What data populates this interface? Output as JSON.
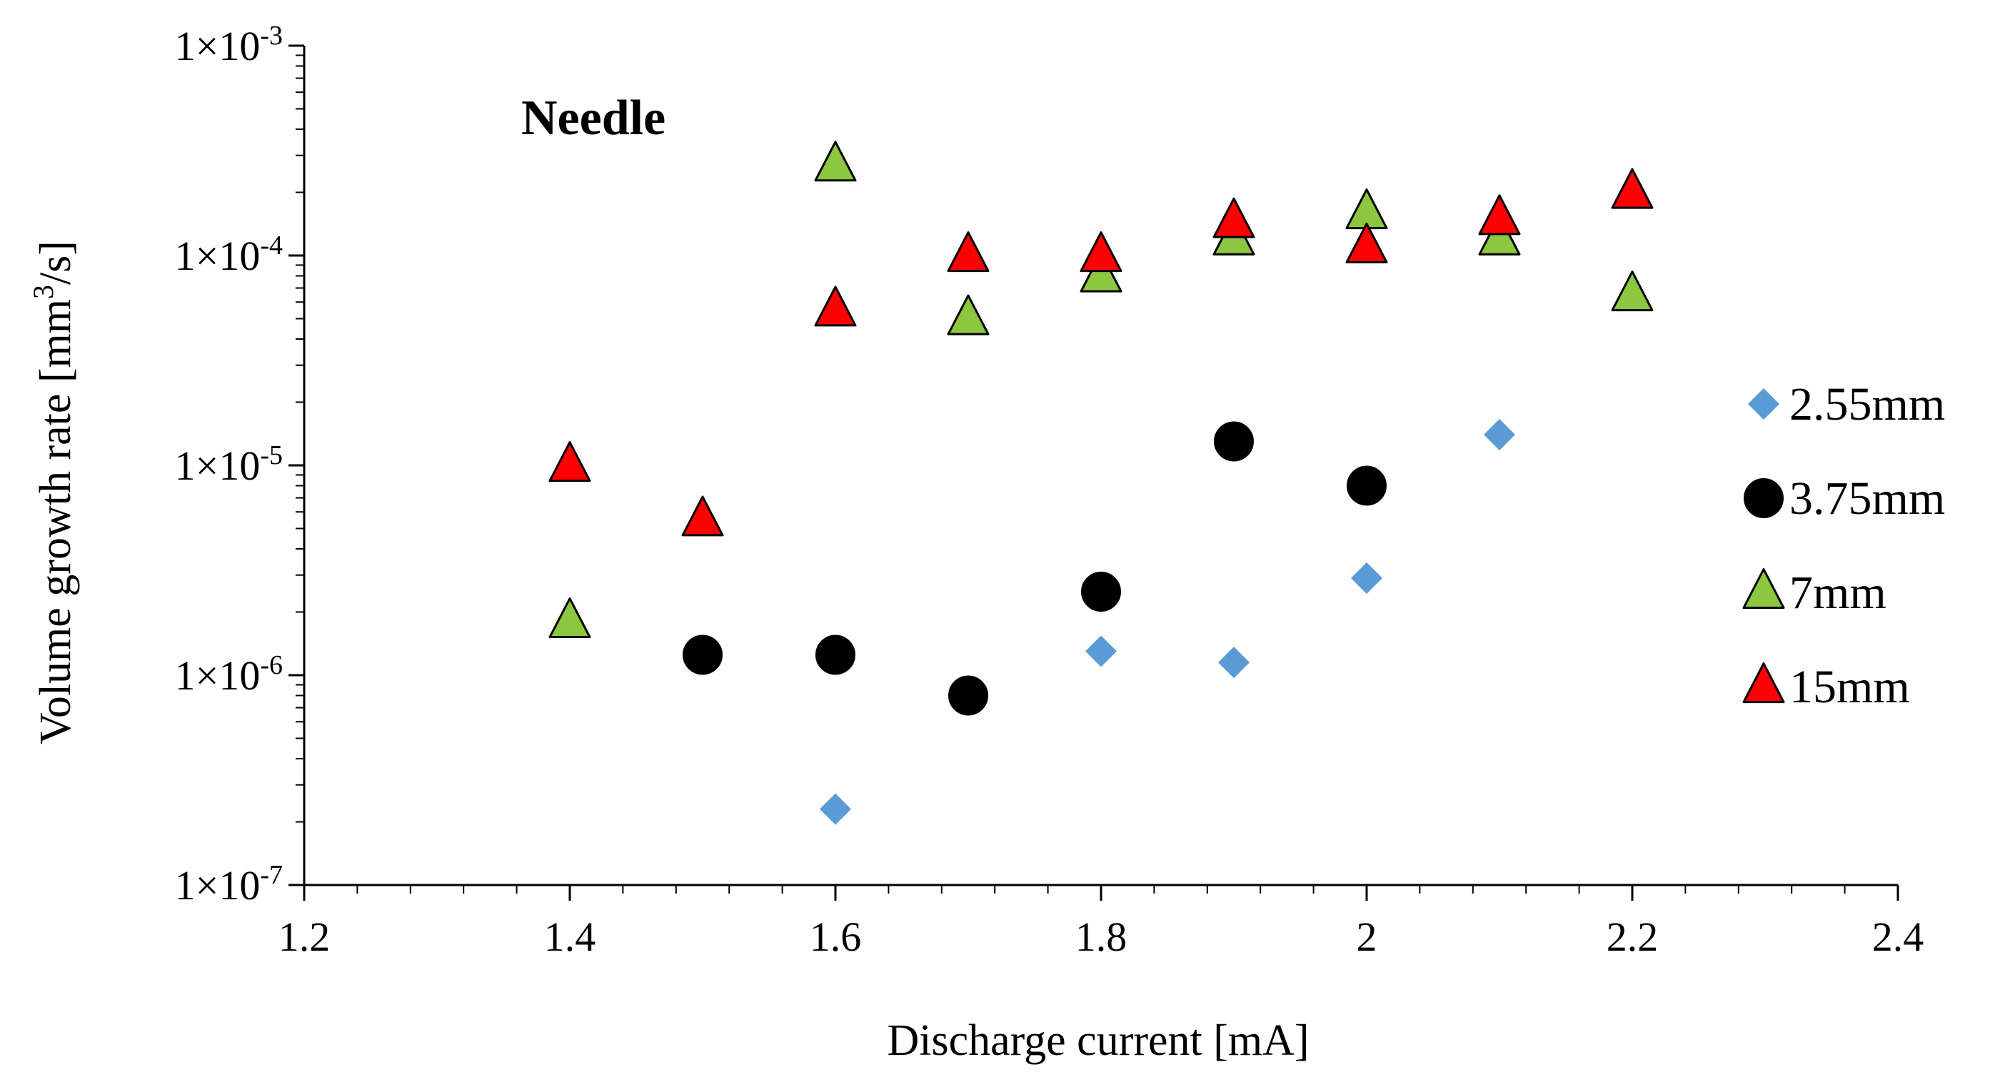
{
  "chart_data": {
    "type": "scatter",
    "title": "",
    "annotation": "Needle",
    "xlabel": "Discharge current [mA]",
    "ylabel_main": "Volume growth rate [mm",
    "ylabel_sup": "3",
    "ylabel_tail": "/s]",
    "xlim": [
      1.2,
      2.4
    ],
    "ylim": [
      1e-07,
      0.001
    ],
    "yscale": "log",
    "grid": false,
    "legend_position": "right",
    "x_ticks": [
      "1.2",
      "1.4",
      "1.6",
      "1.8",
      "2",
      "2.2",
      "2.4"
    ],
    "y_ticks": [
      {
        "base": "1×10",
        "exp": "-7"
      },
      {
        "base": "1×10",
        "exp": "-6"
      },
      {
        "base": "1×10",
        "exp": "-5"
      },
      {
        "base": "1×10",
        "exp": "-4"
      },
      {
        "base": "1×10",
        "exp": "-3"
      }
    ],
    "series": [
      {
        "name": "2.55mm",
        "marker": "diamond",
        "color": "#5b9bd5",
        "stroke": "none",
        "points": [
          [
            1.6,
            2.3e-07
          ],
          [
            1.8,
            1.3e-06
          ],
          [
            1.9,
            1.15e-06
          ],
          [
            2.0,
            2.9e-06
          ],
          [
            2.1,
            1.4e-05
          ]
        ]
      },
      {
        "name": "3.75mm",
        "marker": "circle",
        "color": "#000000",
        "stroke": "#000000",
        "points": [
          [
            1.5,
            1.25e-06
          ],
          [
            1.6,
            1.25e-06
          ],
          [
            1.7,
            8e-07
          ],
          [
            1.8,
            2.5e-06
          ],
          [
            1.9,
            1.3e-05
          ],
          [
            2.0,
            8e-06
          ]
        ]
      },
      {
        "name": "7mm",
        "marker": "triangle",
        "color": "#8dc63f",
        "stroke": "#000000",
        "points": [
          [
            1.4,
            1.8e-06
          ],
          [
            1.6,
            0.00027
          ],
          [
            1.7,
            5e-05
          ],
          [
            1.8,
            8e-05
          ],
          [
            1.9,
            0.00012
          ],
          [
            2.0,
            0.00016
          ],
          [
            2.1,
            0.00012
          ],
          [
            2.2,
            6.5e-05
          ]
        ]
      },
      {
        "name": "15mm",
        "marker": "triangle",
        "color": "#ff0000",
        "stroke": "#000000",
        "points": [
          [
            1.4,
            1e-05
          ],
          [
            1.5,
            5.5e-06
          ],
          [
            1.6,
            5.5e-05
          ],
          [
            1.7,
            0.0001
          ],
          [
            1.8,
            0.0001
          ],
          [
            1.9,
            0.000145
          ],
          [
            2.0,
            0.00011
          ],
          [
            2.1,
            0.00015
          ],
          [
            2.2,
            0.0002
          ]
        ]
      }
    ]
  }
}
